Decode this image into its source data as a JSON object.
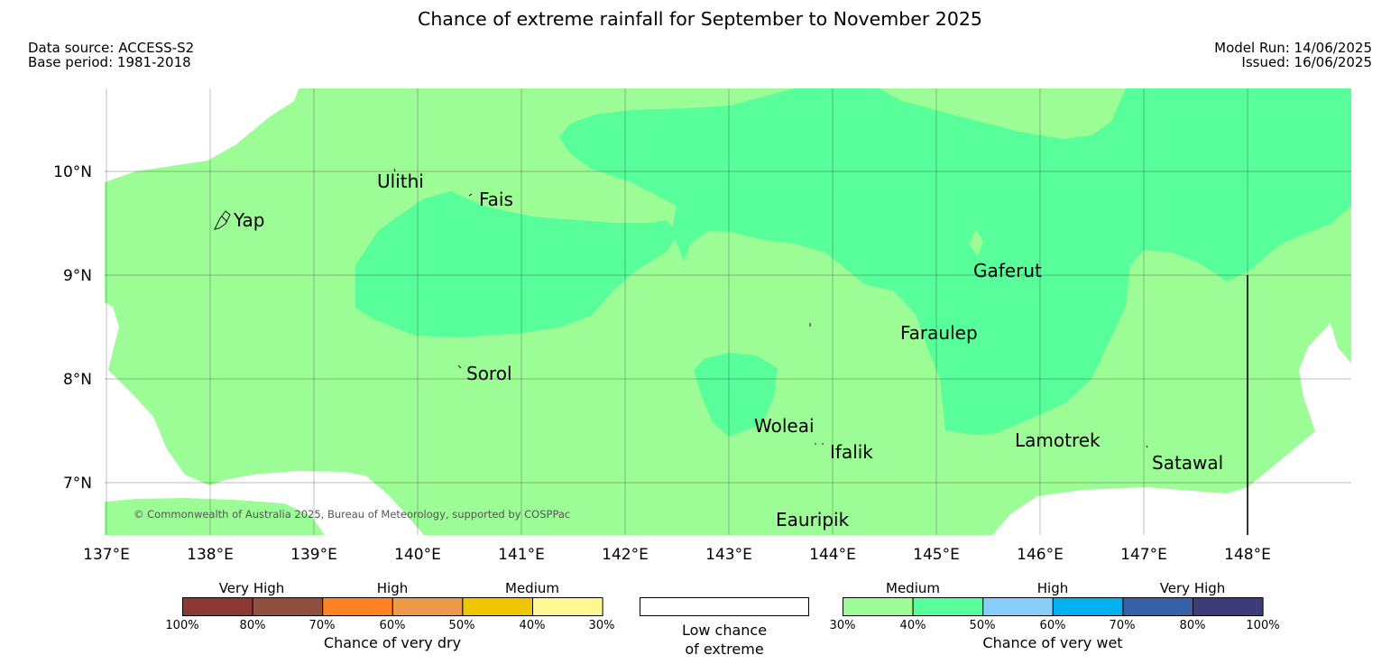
{
  "title": "Chance of extreme rainfall for September to November 2025",
  "meta": {
    "source": "Data source: ACCESS-S2",
    "base_period": "Base period: 1981-2018",
    "model_run": "Model Run: 14/06/2025",
    "issued": "Issued: 16/06/2025"
  },
  "copyright": "© Commonwealth of Australia 2025, Bureau of Meteorology, supported by COSPPac",
  "axes": {
    "lon_labels": [
      "137°E",
      "138°E",
      "139°E",
      "140°E",
      "141°E",
      "142°E",
      "143°E",
      "144°E",
      "145°E",
      "146°E",
      "147°E",
      "148°E"
    ],
    "lat_labels": [
      "10°N",
      "9°N",
      "8°N",
      "7°N"
    ]
  },
  "places": [
    {
      "name": "Ulithi",
      "label": "Ulithi"
    },
    {
      "name": "Fais",
      "label": "Fais"
    },
    {
      "name": "Yap",
      "label": "Yap"
    },
    {
      "name": "Gaferut",
      "label": "Gaferut"
    },
    {
      "name": "Faraulep",
      "label": "Faraulep"
    },
    {
      "name": "Sorol",
      "label": "Sorol"
    },
    {
      "name": "Woleai",
      "label": "Woleai"
    },
    {
      "name": "Ifalik",
      "label": "Ifalik"
    },
    {
      "name": "Lamotrek",
      "label": "Lamotrek"
    },
    {
      "name": "Satawal",
      "label": "Satawal"
    },
    {
      "name": "Eauripik",
      "label": "Eauripik"
    }
  ],
  "legend": {
    "dry": {
      "groups": [
        "Very High",
        "High",
        "Medium"
      ],
      "ticks": [
        "100%",
        "80%",
        "70%",
        "60%",
        "50%",
        "40%",
        "30%"
      ],
      "colors": [
        "#8B3A33",
        "#91503F",
        "#FF8224",
        "#EE9B49",
        "#EFC700",
        "#FFF791"
      ],
      "caption": "Chance of very dry"
    },
    "low": {
      "caption_line1": "Low chance",
      "caption_line2": "of extreme"
    },
    "wet": {
      "groups": [
        "Medium",
        "High",
        "Very High"
      ],
      "ticks": [
        "30%",
        "40%",
        "50%",
        "60%",
        "70%",
        "80%",
        "100%"
      ],
      "colors": [
        "#9CFC96",
        "#58FE9A",
        "#87CEFA",
        "#00B0F0",
        "#3660A8",
        "#3E3B7A"
      ],
      "caption": "Chance of very wet"
    }
  },
  "colors": {
    "medium_wet": "#9CFC96",
    "medium_high_wet": "#58FE9A",
    "low_chance": "#FFFFFF"
  }
}
